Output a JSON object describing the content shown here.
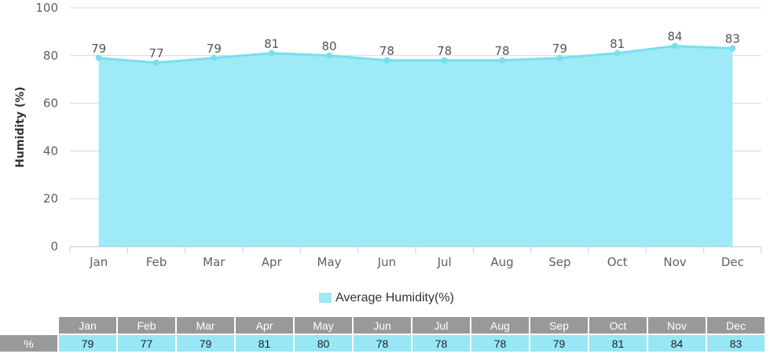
{
  "chart_data": {
    "type": "area",
    "categories": [
      "Jan",
      "Feb",
      "Mar",
      "Apr",
      "May",
      "Jun",
      "Jul",
      "Aug",
      "Sep",
      "Oct",
      "Nov",
      "Dec"
    ],
    "series": [
      {
        "name": "Average Humidity(%)",
        "values": [
          79,
          77,
          79,
          81,
          80,
          78,
          78,
          78,
          79,
          81,
          84,
          83
        ]
      }
    ],
    "ylabel": "Humidity (%)",
    "ylim": [
      0,
      100
    ],
    "yticks": [
      0,
      20,
      40,
      60,
      80,
      100
    ],
    "grid": true,
    "legend": "bottom-center",
    "colors": {
      "fill": "#9eeaf7",
      "line": "#78dfef",
      "grid": "#d8d8d8",
      "axis": "#c0d0e0"
    }
  },
  "table": {
    "row_label": "%",
    "months": [
      "Jan",
      "Feb",
      "Mar",
      "Apr",
      "May",
      "Jun",
      "Jul",
      "Aug",
      "Sep",
      "Oct",
      "Nov",
      "Dec"
    ],
    "values": [
      "79",
      "77",
      "79",
      "81",
      "80",
      "78",
      "78",
      "78",
      "79",
      "81",
      "84",
      "83"
    ]
  }
}
